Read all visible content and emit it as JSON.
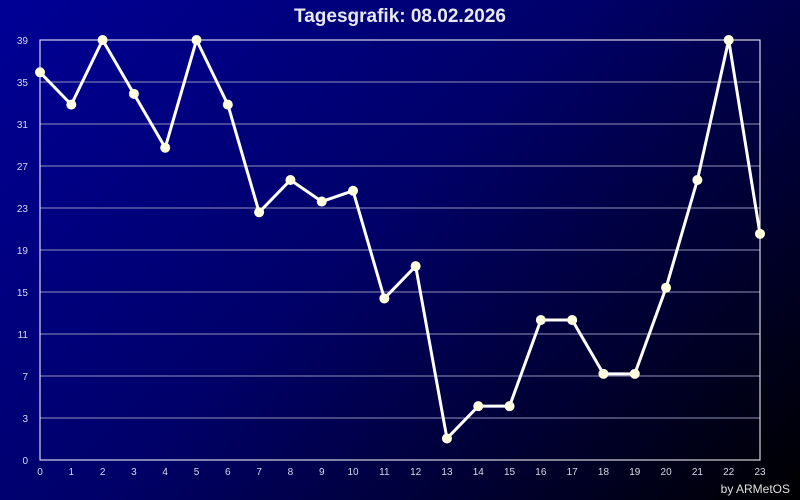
{
  "chart_data": {
    "type": "line",
    "title": "Tagesgrafik: 08.02.2026",
    "credit": "by ARMetOS",
    "x": [
      0,
      1,
      2,
      3,
      4,
      5,
      6,
      7,
      8,
      9,
      10,
      11,
      12,
      13,
      14,
      15,
      16,
      17,
      18,
      19,
      20,
      21,
      22,
      23
    ],
    "values": [
      36,
      33,
      39,
      34,
      29,
      39,
      33,
      23,
      26,
      24,
      25,
      15,
      18,
      2,
      5,
      5,
      13,
      13,
      8,
      8,
      16,
      26,
      39,
      21
    ],
    "ylim": [
      0,
      39
    ],
    "xlim": [
      0,
      23
    ],
    "y_tick_labels": [
      "0",
      "3",
      "7",
      "11",
      "15",
      "19",
      "23",
      "27",
      "31",
      "35",
      "39"
    ],
    "x_tick_labels": [
      "0",
      "1",
      "2",
      "3",
      "4",
      "5",
      "6",
      "7",
      "8",
      "9",
      "10",
      "11",
      "12",
      "13",
      "14",
      "15",
      "16",
      "17",
      "18",
      "19",
      "20",
      "21",
      "22",
      "23"
    ],
    "grid": true,
    "colors": {
      "line": "#ffffff",
      "marker": "#ffffe0",
      "grid": "#9090b8",
      "background_top": "#000096",
      "background_bottom": "#000000"
    }
  }
}
